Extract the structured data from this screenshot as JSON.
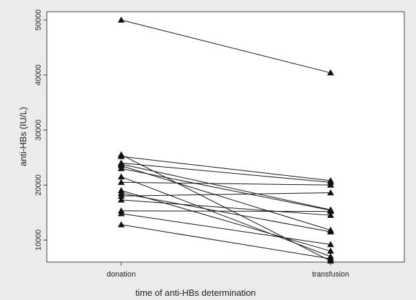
{
  "chart_data": {
    "type": "line",
    "title": "",
    "xlabel": "time of anti-HBs determination",
    "ylabel": "anti-HBs (IU/L)",
    "categories": [
      "donation",
      "transfusion"
    ],
    "y_ticks": [
      "10000",
      "20000",
      "30000",
      "40000",
      "50000"
    ],
    "ylim": [
      6000,
      51500
    ],
    "grid": false,
    "legend": "none",
    "marker": "triangle",
    "colors": {
      "background": "#ebebeb",
      "plot_area": "#ffffff",
      "line": "#111111",
      "marker": "#111111"
    },
    "series": [
      {
        "values": [
          50000,
          40400
        ]
      },
      {
        "values": [
          25500,
          6200
        ]
      },
      {
        "values": [
          25200,
          20800
        ]
      },
      {
        "values": [
          24000,
          20500
        ]
      },
      {
        "values": [
          23800,
          15500
        ]
      },
      {
        "values": [
          23500,
          11800
        ]
      },
      {
        "values": [
          23000,
          15400
        ]
      },
      {
        "values": [
          21500,
          7000
        ]
      },
      {
        "values": [
          20500,
          20000
        ]
      },
      {
        "values": [
          19000,
          8000
        ]
      },
      {
        "values": [
          18500,
          11500
        ]
      },
      {
        "values": [
          18000,
          18600
        ]
      },
      {
        "values": [
          17300,
          14500
        ]
      },
      {
        "values": [
          15300,
          15200
        ]
      },
      {
        "values": [
          14800,
          9200
        ]
      },
      {
        "values": [
          12800,
          6600
        ]
      }
    ]
  }
}
